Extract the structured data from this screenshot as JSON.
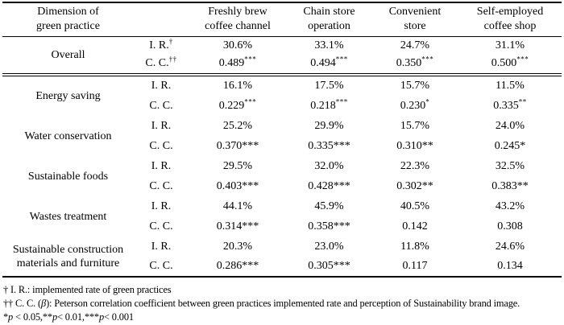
{
  "table": {
    "header": {
      "dimension": [
        "Dimension of",
        "green practice"
      ],
      "columns": [
        [
          "Freshly brew",
          "coffee channel"
        ],
        [
          "Chain store",
          "operation"
        ],
        [
          "Convenient",
          "store"
        ],
        [
          "Self-employed",
          "coffee shop"
        ]
      ]
    },
    "row_labels": {
      "ir": "I. R.",
      "ir_note": "†",
      "cc": "C. C.",
      "cc_note": "††"
    },
    "sections": [
      {
        "dimension": "Overall",
        "ir": [
          "30.6%",
          "33.1%",
          "24.7%",
          "31.1%"
        ],
        "cc": [
          {
            "v": "0.489",
            "s": "***"
          },
          {
            "v": "0.494",
            "s": "***"
          },
          {
            "v": "0.350",
            "s": "***"
          },
          {
            "v": "0.500",
            "s": "***"
          }
        ]
      },
      {
        "dimension": "Energy saving",
        "ir": [
          "16.1%",
          "17.5%",
          "15.7%",
          "11.5%"
        ],
        "cc": [
          {
            "v": "0.229",
            "s": "***"
          },
          {
            "v": "0.218",
            "s": "***"
          },
          {
            "v": "0.230",
            "s": "*"
          },
          {
            "v": "0.335",
            "s": "**"
          }
        ]
      },
      {
        "dimension": "Water conservation",
        "ir": [
          "25.2%",
          "29.9%",
          "15.7%",
          "24.0%"
        ],
        "cc": [
          {
            "v": "0.370",
            "s": "***"
          },
          {
            "v": "0.335",
            "s": "***"
          },
          {
            "v": "0.310",
            "s": "**"
          },
          {
            "v": "0.245",
            "s": "*"
          }
        ]
      },
      {
        "dimension": "Sustainable foods",
        "ir": [
          "29.5%",
          "32.0%",
          "22.3%",
          "32.5%"
        ],
        "cc": [
          {
            "v": "0.403",
            "s": "***"
          },
          {
            "v": "0.428",
            "s": "***"
          },
          {
            "v": "0.302",
            "s": "**"
          },
          {
            "v": "0.383",
            "s": "**"
          }
        ]
      },
      {
        "dimension": "Wastes treatment",
        "ir": [
          "44.1%",
          "45.9%",
          "40.5%",
          "43.2%"
        ],
        "cc": [
          {
            "v": "0.314",
            "s": "***"
          },
          {
            "v": "0.358",
            "s": "***"
          },
          {
            "v": "0.142",
            "s": ""
          },
          {
            "v": "0.308",
            "s": ""
          }
        ]
      },
      {
        "dimension": "Sustainable construction materials and furniture",
        "ir": [
          "20.3%",
          "23.0%",
          "11.8%",
          "24.6%"
        ],
        "cc": [
          {
            "v": "0.286",
            "s": "***"
          },
          {
            "v": "0.305",
            "s": "***"
          },
          {
            "v": "0.117",
            "s": ""
          },
          {
            "v": "0.134",
            "s": ""
          }
        ]
      }
    ]
  },
  "footnotes": {
    "line1": "† I. R.: implemented rate of green practices",
    "line2_pre": "†† C. C. (",
    "line2_sym": "β",
    "line2_post": "): Peterson correlation coefficient between green practices implemented rate and perception of Sustainability brand image.",
    "sig": [
      "*",
      "p",
      " < 0.05,**",
      "p",
      "< 0.01,***",
      "p",
      "< 0.001"
    ]
  },
  "colors": {
    "text": "#000000",
    "background": "#ffffff",
    "rule": "#000000"
  }
}
